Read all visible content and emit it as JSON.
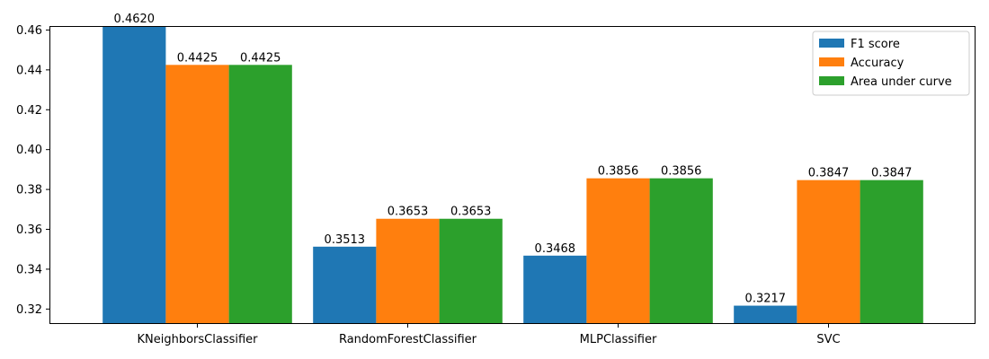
{
  "chart_data": {
    "type": "bar",
    "categories": [
      "KNeighborsClassifier",
      "RandomForestClassifier",
      "MLPClassifier",
      "SVC"
    ],
    "series": [
      {
        "name": "F1 score",
        "values": [
          0.462,
          0.3513,
          0.3468,
          0.3217
        ],
        "value_labels": [
          "0.4620",
          "0.3513",
          "0.3468",
          "0.3217"
        ],
        "color": "#1f77b4"
      },
      {
        "name": "Accuracy",
        "values": [
          0.4425,
          0.3653,
          0.3856,
          0.3847
        ],
        "value_labels": [
          "0.4425",
          "0.3653",
          "0.3856",
          "0.3847"
        ],
        "color": "#ff7f0e"
      },
      {
        "name": "Area under curve",
        "values": [
          0.4425,
          0.3653,
          0.3856,
          0.3847
        ],
        "value_labels": [
          "0.4425",
          "0.3653",
          "0.3856",
          "0.3847"
        ],
        "color": "#2ca02c"
      }
    ],
    "y_ticks": [
      "0.32",
      "0.34",
      "0.36",
      "0.38",
      "0.40",
      "0.42",
      "0.44",
      "0.46"
    ],
    "ylim": [
      0.3125,
      0.462
    ],
    "title": "",
    "xlabel": "",
    "ylabel": "",
    "grid": false,
    "legend_position": "top-right"
  }
}
